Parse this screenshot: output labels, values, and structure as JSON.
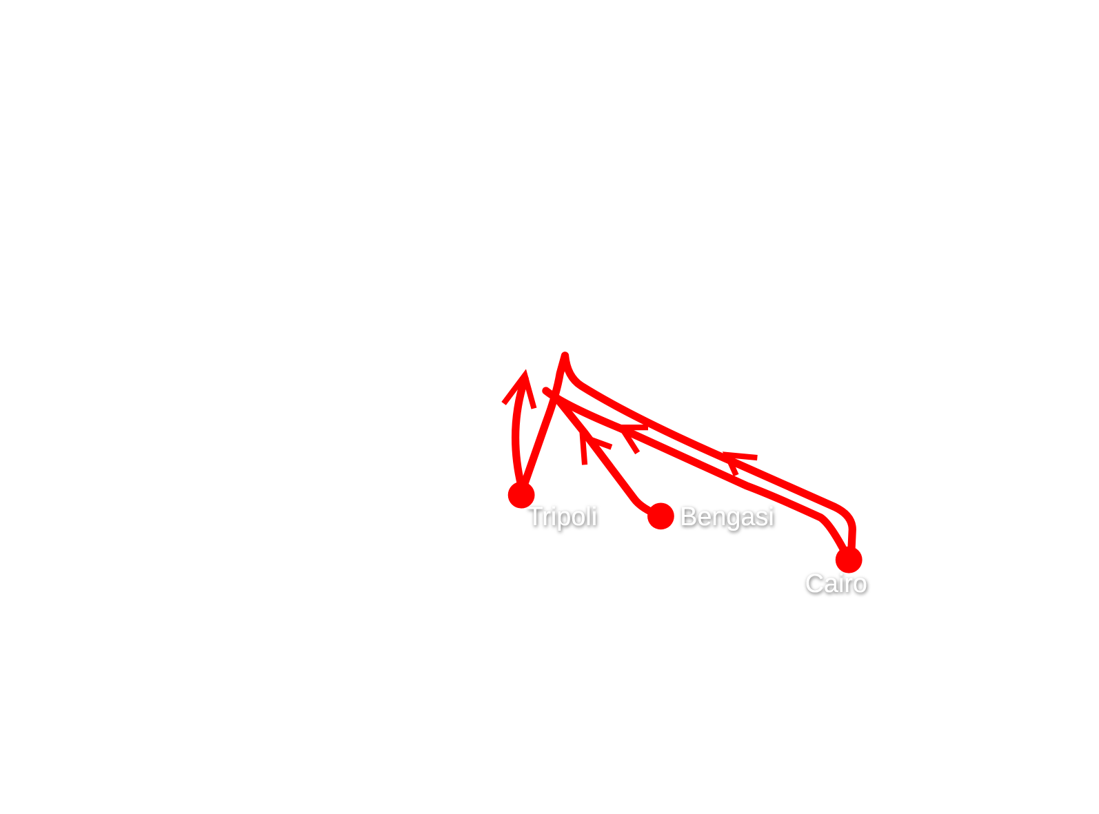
{
  "map": {
    "cities": [
      {
        "label": "Tripoli"
      },
      {
        "label": "Bengasi"
      },
      {
        "label": "Cairo"
      }
    ]
  }
}
